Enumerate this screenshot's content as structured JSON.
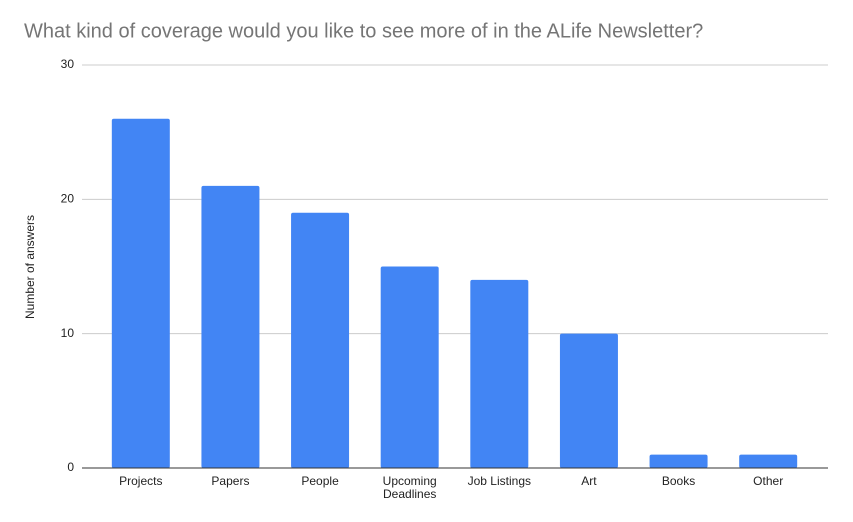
{
  "chart_data": {
    "type": "bar",
    "title": "What kind of coverage would you like to see more of in the ALife Newsletter?",
    "y_label": "Number of answers",
    "categories": [
      "Projects",
      "Papers",
      "People",
      "Upcoming Deadlines",
      "Job Listings",
      "Art",
      "Books",
      "Other"
    ],
    "values": [
      26,
      21,
      19,
      15,
      14,
      10,
      1,
      1
    ],
    "color": "#4285f4",
    "ylim": [
      0,
      30
    ],
    "yticks": [
      0,
      10,
      20,
      30
    ],
    "grid": true
  }
}
